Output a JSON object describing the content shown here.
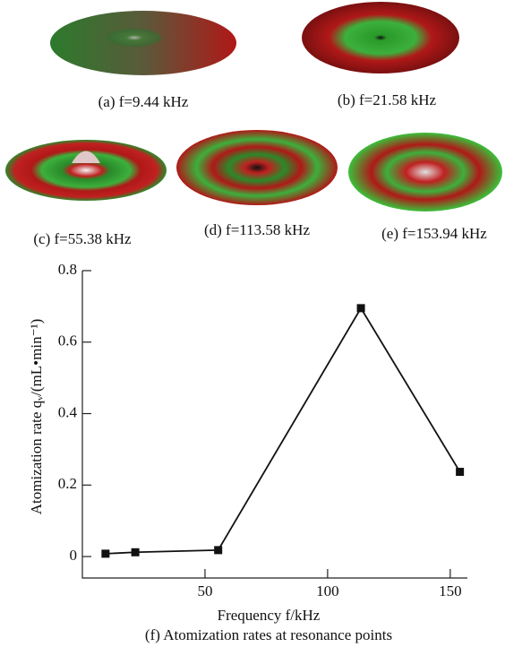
{
  "figures": [
    {
      "caption": "(a) f=9.44 kHz"
    },
    {
      "caption": "(b) f=21.58 kHz"
    },
    {
      "caption": "(c) f=55.38 kHz"
    },
    {
      "caption": "(d) f=113.58 kHz"
    },
    {
      "caption": "(e) f=153.94 kHz"
    }
  ],
  "chart_data": {
    "type": "line",
    "caption": "(f) Atomization rates at resonance points",
    "x_label": "Frequency f/kHz",
    "y_label": "Atomization rate qᵥ/(mL•min⁻¹)",
    "x": [
      9.44,
      21.58,
      55.38,
      113.58,
      153.94
    ],
    "series": [
      {
        "color": "#111111",
        "values": [
          0.008,
          0.012,
          0.018,
          0.695,
          0.237
        ]
      }
    ],
    "xlim": [
      0,
      157
    ],
    "xticks": [
      50,
      100,
      150
    ],
    "ylim": [
      -0.06,
      0.8
    ],
    "yticks": [
      0,
      0.2,
      0.4,
      0.6,
      0.8
    ]
  }
}
